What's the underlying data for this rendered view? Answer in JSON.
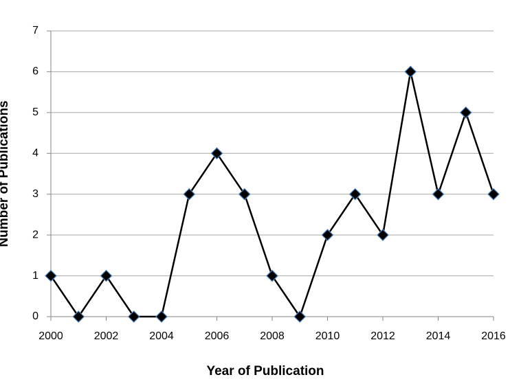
{
  "chart_data": {
    "type": "line",
    "xlabel": "Year of Publication",
    "ylabel": "Number of Publications",
    "x": [
      2000,
      2001,
      2002,
      2003,
      2004,
      2005,
      2006,
      2007,
      2008,
      2009,
      2010,
      2011,
      2012,
      2013,
      2014,
      2015,
      2016
    ],
    "values": [
      1,
      0,
      1,
      0,
      0,
      3,
      4,
      3,
      1,
      0,
      2,
      3,
      2,
      6,
      3,
      5,
      3
    ],
    "color": "#000000",
    "marker": "diamond",
    "xlim": [
      2000,
      2016
    ],
    "xticks": [
      2000,
      2002,
      2004,
      2006,
      2008,
      2010,
      2012,
      2014,
      2016
    ],
    "ylim": [
      0,
      7
    ],
    "yticks": [
      0,
      1,
      2,
      3,
      4,
      5,
      6,
      7
    ],
    "grid": true
  }
}
